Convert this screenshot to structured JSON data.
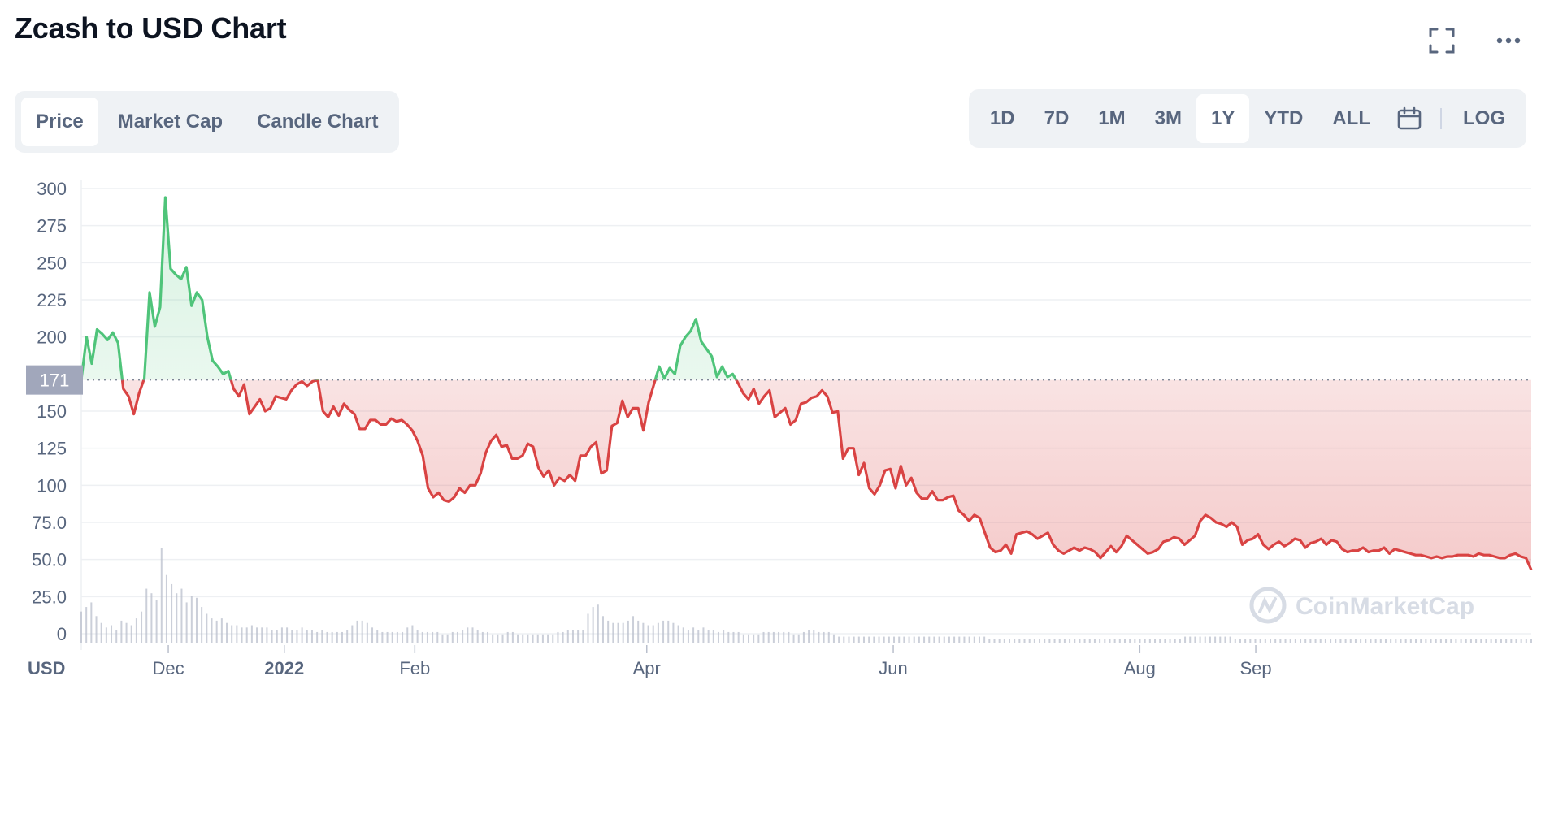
{
  "header": {
    "title": "Zcash to USD Chart"
  },
  "icons": {
    "fullscreen": "fullscreen-icon",
    "more": "more-icon",
    "calendar": "calendar-icon"
  },
  "tabs": {
    "left": [
      {
        "label": "Price",
        "active": true
      },
      {
        "label": "Market Cap",
        "active": false
      },
      {
        "label": "Candle Chart",
        "active": false
      }
    ],
    "right": [
      {
        "label": "1D",
        "active": false
      },
      {
        "label": "7D",
        "active": false
      },
      {
        "label": "1M",
        "active": false
      },
      {
        "label": "3M",
        "active": false
      },
      {
        "label": "1Y",
        "active": true
      },
      {
        "label": "YTD",
        "active": false
      },
      {
        "label": "ALL",
        "active": false
      }
    ],
    "log_label": "LOG"
  },
  "watermark": "CoinMarketCap",
  "chart_data": {
    "type": "area",
    "title": "Zcash to USD Chart",
    "unit_label": "USD",
    "ylim": [
      0,
      300
    ],
    "y_ticks": [
      "300",
      "275",
      "250",
      "225",
      "200",
      "150",
      "125",
      "100",
      "75.0",
      "50.0",
      "25.0",
      "0"
    ],
    "y_tick_values": [
      300,
      275,
      250,
      225,
      200,
      150,
      125,
      100,
      75,
      50,
      25,
      0
    ],
    "x_labels": [
      "Dec",
      "2022",
      "Feb",
      "Apr",
      "Jun",
      "Aug",
      "Sep"
    ],
    "x_label_positions": [
      0.06,
      0.14,
      0.23,
      0.39,
      0.56,
      0.73,
      0.81
    ],
    "reference_price": 171,
    "reference_label": "171",
    "colors": {
      "up": "#4fc47a",
      "down": "#d94343",
      "grid": "#eef0f3",
      "ref_label_bg": "#a1a7bb"
    },
    "price_series": [
      171,
      200,
      182,
      205,
      202,
      198,
      203,
      196,
      165,
      160,
      148,
      162,
      172,
      230,
      207,
      220,
      294,
      246,
      242,
      239,
      247,
      221,
      230,
      225,
      200,
      184,
      180,
      175,
      177,
      165,
      160,
      168,
      148,
      153,
      158,
      150,
      152,
      160,
      159,
      158,
      164,
      168,
      170,
      167,
      170,
      171,
      150,
      146,
      153,
      147,
      155,
      151,
      148,
      138,
      138,
      144,
      144,
      141,
      141,
      145,
      143,
      144,
      141,
      137,
      130,
      120,
      98,
      92,
      95,
      90,
      89,
      92,
      98,
      95,
      100,
      100,
      108,
      122,
      130,
      134,
      126,
      127,
      118,
      118,
      120,
      128,
      126,
      112,
      106,
      110,
      100,
      105,
      103,
      107,
      103,
      120,
      120,
      126,
      129,
      108,
      110,
      140,
      142,
      157,
      146,
      152,
      152,
      137,
      156,
      168,
      180,
      172,
      179,
      175,
      194,
      200,
      204,
      212,
      197,
      192,
      187,
      173,
      180,
      173,
      175,
      169,
      162,
      158,
      165,
      155,
      160,
      164,
      146,
      149,
      152,
      141,
      144,
      155,
      156,
      159,
      160,
      164,
      160,
      149,
      150,
      118,
      125,
      125,
      107,
      115,
      98,
      94,
      100,
      110,
      111,
      98,
      113,
      100,
      105,
      95,
      91,
      91,
      96,
      90,
      90,
      92,
      93,
      83,
      80,
      76,
      80,
      78,
      68,
      58,
      55,
      56,
      60,
      54,
      67,
      68,
      69,
      67,
      64,
      66,
      68,
      60,
      56,
      54,
      56,
      58,
      56,
      58,
      57,
      55,
      51,
      55,
      59,
      55,
      59,
      66,
      63,
      60,
      57,
      54,
      55,
      57,
      62,
      63,
      65,
      64,
      60,
      63,
      66,
      76,
      80,
      78,
      75,
      74,
      72,
      75,
      72,
      60,
      63,
      64,
      67,
      60,
      57,
      60,
      62,
      59,
      61,
      64,
      63,
      58,
      61,
      62,
      64,
      60,
      63,
      62,
      57,
      55,
      56,
      56,
      58,
      55,
      56,
      56,
      58,
      54,
      57,
      56,
      55,
      54,
      53,
      53,
      52,
      51,
      52,
      51,
      52,
      52,
      53,
      53,
      53,
      52,
      54,
      53,
      53,
      52,
      51,
      51,
      53,
      54,
      52,
      51,
      43
    ],
    "volume_series": [
      14,
      16,
      18,
      12,
      9,
      7,
      8,
      6,
      10,
      9,
      8,
      11,
      14,
      24,
      22,
      19,
      42,
      30,
      26,
      22,
      24,
      18,
      21,
      20,
      16,
      13,
      11,
      10,
      11,
      9,
      8,
      8,
      7,
      7,
      8,
      7,
      7,
      7,
      6,
      6,
      7,
      7,
      6,
      6,
      7,
      6,
      6,
      5,
      6,
      5,
      5,
      5,
      5,
      6,
      8,
      10,
      10,
      9,
      7,
      6,
      5,
      5,
      5,
      5,
      5,
      7,
      8,
      6,
      5,
      5,
      5,
      5,
      4,
      4,
      5,
      5,
      6,
      7,
      7,
      6,
      5,
      5,
      4,
      4,
      4,
      5,
      5,
      4,
      4,
      4,
      4,
      4,
      4,
      4,
      4,
      5,
      5,
      6,
      6,
      6,
      6,
      13,
      16,
      17,
      12,
      10,
      9,
      9,
      9,
      10,
      12,
      10,
      9,
      8,
      8,
      9,
      10,
      10,
      9,
      8,
      7,
      6,
      7,
      6,
      7,
      6,
      6,
      5,
      6,
      5,
      5,
      5,
      4,
      4,
      4,
      4,
      5,
      5,
      5,
      5,
      5,
      5,
      4,
      4,
      5,
      6,
      6,
      5,
      5,
      5,
      4,
      3,
      3,
      3,
      3,
      3,
      3,
      3,
      3,
      3,
      3,
      3,
      3,
      3,
      3,
      3,
      3,
      3,
      3,
      3,
      3,
      3,
      3,
      3,
      3,
      3,
      3,
      3,
      3,
      3,
      3,
      2,
      2,
      2,
      2,
      2,
      2,
      2,
      2,
      2,
      2,
      2,
      2,
      2,
      2,
      2,
      2,
      2,
      2,
      2,
      2,
      2,
      2,
      2,
      2,
      2,
      2,
      2,
      2,
      2,
      2,
      2,
      2,
      2,
      2,
      2,
      2,
      2,
      2,
      2,
      3,
      3,
      3,
      3,
      3,
      3,
      3,
      3,
      3,
      3,
      2,
      2,
      2,
      2,
      2,
      2,
      2,
      2,
      2,
      2,
      2,
      2,
      2,
      2,
      2,
      2,
      2,
      2,
      2,
      2,
      2,
      2,
      2,
      2,
      2,
      2,
      2,
      2,
      2,
      2,
      2,
      2,
      2,
      2,
      2,
      2,
      2,
      2,
      2,
      2,
      2,
      2,
      2,
      2,
      2,
      2,
      2,
      2,
      2,
      2,
      2,
      2,
      2,
      2,
      2,
      2,
      2,
      2,
      2,
      2
    ]
  }
}
